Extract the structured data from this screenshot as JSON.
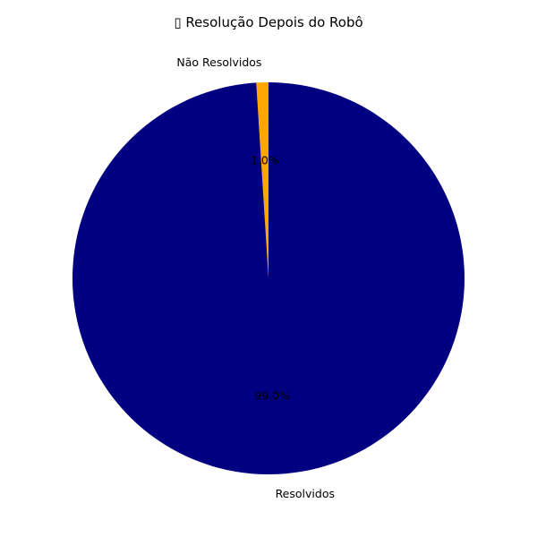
{
  "chart_data": {
    "type": "pie",
    "title": "▯ Resolução Depois do Robô",
    "categories": [
      "Não Resolvidos",
      "Resolvidos"
    ],
    "values": [
      1.0,
      99.0
    ],
    "percent_labels": [
      "1.0%",
      "99.0%"
    ],
    "colors": [
      "#ffa500",
      "#000080"
    ],
    "start_angle_deg": 90,
    "direction": "counterclockwise"
  }
}
